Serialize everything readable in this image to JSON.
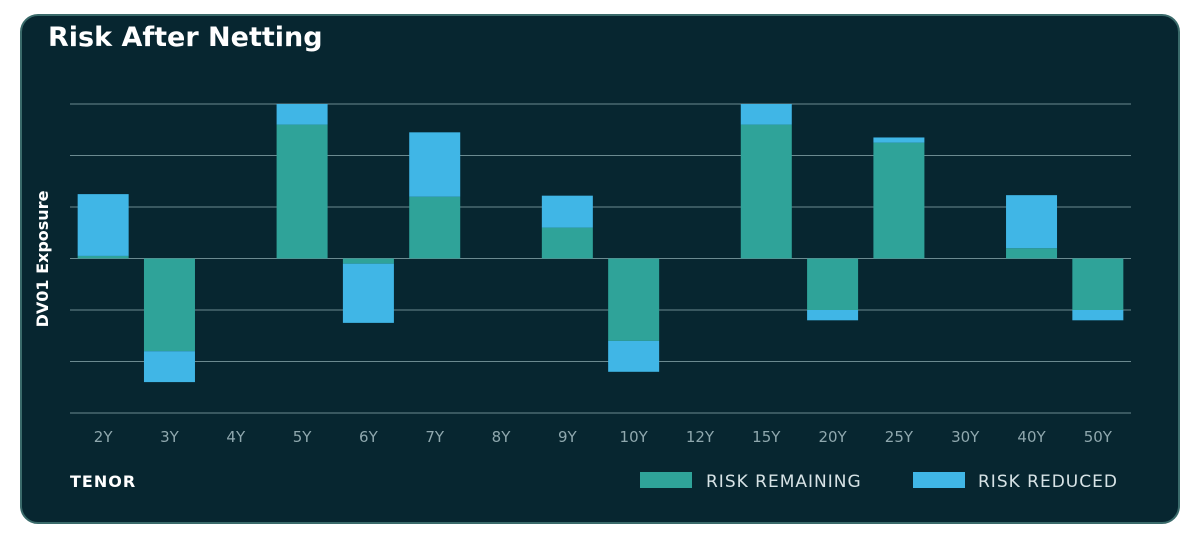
{
  "colors": {
    "background": "#072630",
    "remaining": "#2fa399",
    "reduced": "#40b6e6",
    "grid": "#6b8a90"
  },
  "chart_data": {
    "type": "bar",
    "stacked": true,
    "title": "Risk After Netting",
    "xlabel": "TENOR",
    "ylabel": "DV01 Exposure",
    "categories": [
      "2Y",
      "3Y",
      "4Y",
      "5Y",
      "6Y",
      "7Y",
      "8Y",
      "9Y",
      "10Y",
      "12Y",
      "15Y",
      "20Y",
      "25Y",
      "30Y",
      "40Y",
      "50Y"
    ],
    "ylim": [
      -3,
      3
    ],
    "grid": true,
    "legend_position": "bottom-right",
    "series": [
      {
        "name": "RISK REMAINING",
        "values": [
          0.05,
          -1.8,
          0,
          2.6,
          -0.1,
          1.2,
          0,
          0.6,
          -1.6,
          0,
          2.6,
          -1.0,
          2.25,
          0,
          0.2,
          -1.0
        ]
      },
      {
        "name": "RISK REDUCED",
        "values": [
          1.2,
          -0.6,
          0,
          0.4,
          -1.15,
          1.25,
          0,
          0.62,
          -0.6,
          0,
          0.4,
          -0.2,
          0.1,
          0,
          1.03,
          -0.2
        ]
      }
    ]
  }
}
